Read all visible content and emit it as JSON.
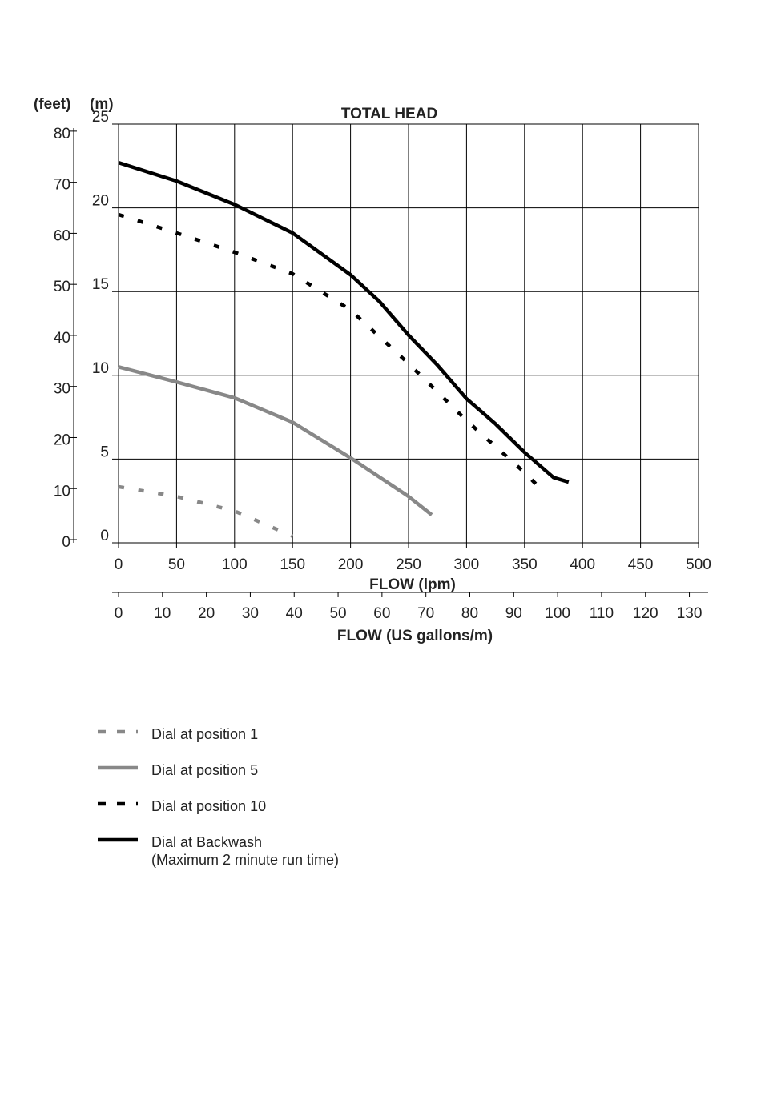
{
  "chart_data": {
    "type": "line",
    "title": "TOTAL HEAD",
    "y_label": "(m)",
    "y2_label": "(feet)",
    "x_label": "FLOW (lpm)",
    "x2_label": "FLOW (US gallons/m)",
    "xlim": [
      0,
      500
    ],
    "xticks": [
      0,
      50,
      100,
      150,
      200,
      250,
      300,
      350,
      400,
      450,
      500
    ],
    "x2lim": [
      0,
      132.09
    ],
    "x2ticks": [
      0,
      10,
      20,
      30,
      40,
      50,
      60,
      70,
      80,
      90,
      100,
      110,
      120,
      130
    ],
    "ylim": [
      0,
      25
    ],
    "yticks": [
      0,
      5,
      10,
      15,
      20,
      25
    ],
    "y2lim": [
      0,
      82.02
    ],
    "y2ticks": [
      0,
      10,
      20,
      30,
      40,
      50,
      60,
      70,
      80
    ],
    "grid": true,
    "series": [
      {
        "name": "Dial at position 1",
        "color": "#888888",
        "style": "dashed",
        "x": [
          0,
          50,
          100,
          150
        ],
        "values": [
          3.35,
          2.77,
          1.9,
          0.4
        ]
      },
      {
        "name": "Dial at position 5",
        "color": "#888888",
        "style": "solid",
        "x": [
          0,
          50,
          100,
          150,
          200,
          250,
          270
        ],
        "values": [
          10.5,
          9.6,
          8.65,
          7.2,
          5.07,
          2.77,
          1.67
        ]
      },
      {
        "name": "Dial at position 10",
        "color": "#000000",
        "style": "dashed",
        "x": [
          0,
          50,
          100,
          150,
          200,
          250,
          300,
          350,
          365
        ],
        "values": [
          19.6,
          18.5,
          17.35,
          16.06,
          13.9,
          10.7,
          7.3,
          4.2,
          3.15
        ]
      },
      {
        "name": "Dial at Backwash",
        "legend_note": "(Maximum 2 minute run time)",
        "color": "#000000",
        "style": "solid",
        "x": [
          0,
          50,
          100,
          150,
          200,
          225,
          250,
          275,
          300,
          325,
          350,
          375,
          388
        ],
        "values": [
          22.7,
          21.6,
          20.2,
          18.5,
          16.0,
          14.4,
          12.4,
          10.6,
          8.6,
          7.1,
          5.4,
          3.9,
          3.63
        ]
      }
    ]
  }
}
